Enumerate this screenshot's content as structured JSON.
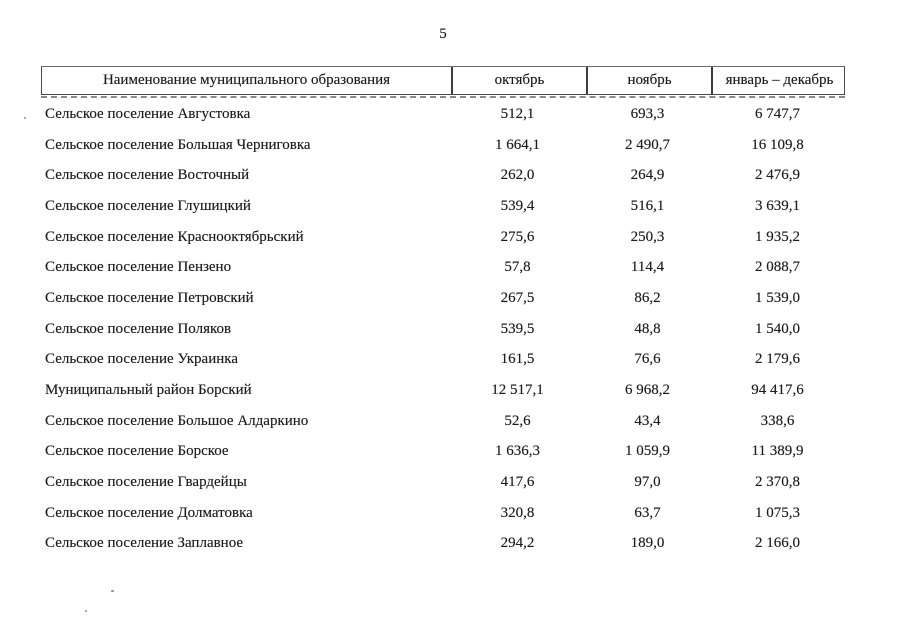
{
  "page": {
    "number": "5"
  },
  "table": {
    "headers": [
      "Наименование муниципального образования",
      "октябрь",
      "ноябрь",
      "январь – декабрь"
    ],
    "rows": [
      [
        "Сельское поселение Августовка",
        "512,1",
        "693,3",
        "6 747,7"
      ],
      [
        "Сельское поселение Большая Черниговка",
        "1 664,1",
        "2 490,7",
        "16 109,8"
      ],
      [
        "Сельское поселение Восточный",
        "262,0",
        "264,9",
        "2 476,9"
      ],
      [
        "Сельское поселение Глушицкий",
        "539,4",
        "516,1",
        "3 639,1"
      ],
      [
        "Сельское поселение Краснооктябрьский",
        "275,6",
        "250,3",
        "1 935,2"
      ],
      [
        "Сельское поселение Пензено",
        "57,8",
        "114,4",
        "2 088,7"
      ],
      [
        "Сельское поселение Петровский",
        "267,5",
        "86,2",
        "1 539,0"
      ],
      [
        "Сельское поселение Поляков",
        "539,5",
        "48,8",
        "1 540,0"
      ],
      [
        "Сельское поселение Украинка",
        "161,5",
        "76,6",
        "2 179,6"
      ],
      [
        "Муниципальный район Борский",
        "12 517,1",
        "6 968,2",
        "94 417,6"
      ],
      [
        "Сельское поселение Большое Алдаркино",
        "52,6",
        "43,4",
        "338,6"
      ],
      [
        "Сельское поселение Борское",
        "1 636,3",
        "1 059,9",
        "11 389,9"
      ],
      [
        "Сельское поселение Гвардейцы",
        "417,6",
        "97,0",
        "2 370,8"
      ],
      [
        "Сельское поселение Долматовка",
        "320,8",
        "63,7",
        "1 075,3"
      ],
      [
        "Сельское поселение Заплавное",
        "294,2",
        "189,0",
        "2 166,0"
      ]
    ]
  },
  "colors": {
    "text": "#1c1c1c",
    "border": "#3d3d3d",
    "background": "#ffffff"
  }
}
